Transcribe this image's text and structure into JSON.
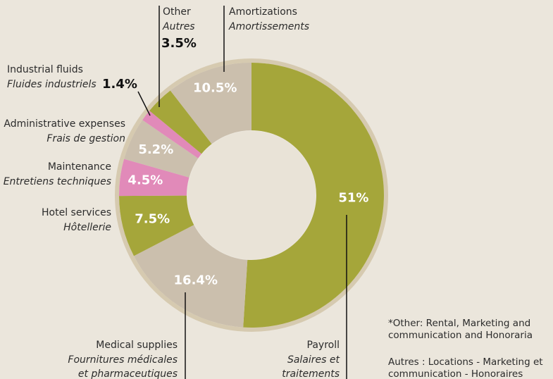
{
  "chart_data": {
    "type": "donut",
    "categories": [
      "Payroll",
      "Medical supplies",
      "Hotel services",
      "Maintenance",
      "Administrative expenses",
      "Industrial fluids",
      "Other",
      "Amortizations"
    ],
    "labels_fr": [
      [
        "Salaires et",
        "traitements"
      ],
      [
        "Fournitures médicales",
        "et pharmaceutiques"
      ],
      [
        "Hôtellerie"
      ],
      [
        "Entretiens techniques"
      ],
      [
        "Frais de gestion"
      ],
      [
        "Fluides industriels"
      ],
      [
        "Autres"
      ],
      [
        "Amortissements"
      ]
    ],
    "values": [
      51,
      16.4,
      7.5,
      4.5,
      5.2,
      1.4,
      3.5,
      10.5
    ],
    "value_labels": [
      "51%",
      "16.4%",
      "7.5%",
      "4.5%",
      "5.2%",
      "1.4%",
      "3.5%",
      "10.5%"
    ],
    "colors": [
      "#a5a63a",
      "#cbbfad",
      "#a5a63a",
      "#e18ab9",
      "#cbbfad",
      "#e18ab9",
      "#a5a63a",
      "#cbbfad"
    ],
    "footnotes": [
      [
        "*Other: Rental, Marketing and",
        "communication and Honoraria"
      ],
      [
        "Autres : Locations - Marketing et",
        "communication - Honoraires"
      ]
    ]
  }
}
